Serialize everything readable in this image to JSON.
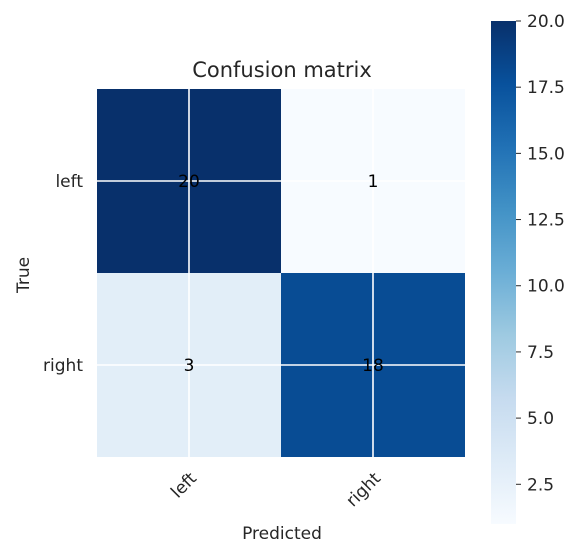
{
  "chart_data": {
    "type": "heatmap",
    "title": "Confusion matrix",
    "xlabel": "Predicted",
    "ylabel": "True",
    "x_categories": [
      "left",
      "right"
    ],
    "y_categories": [
      "left",
      "right"
    ],
    "values": [
      [
        20,
        1
      ],
      [
        3,
        18
      ]
    ],
    "colormap": "Blues",
    "colorbar": {
      "min": 1,
      "max": 20,
      "ticks": [
        "2.5",
        "5.0",
        "7.5",
        "10.0",
        "12.5",
        "15.0",
        "17.5",
        "20.0"
      ]
    },
    "grid": true,
    "colors": {
      "cmap_low": "#f7fbff",
      "cmap_high": "#08306b",
      "grid_line": "#ffffff",
      "cell_text": "#000000"
    }
  }
}
